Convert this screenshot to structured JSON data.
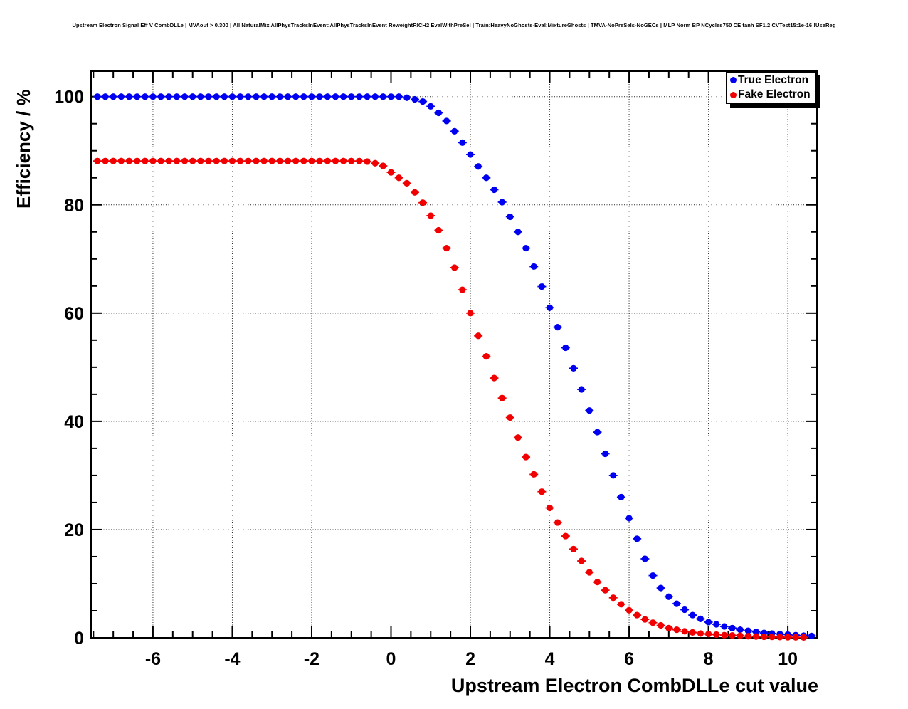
{
  "page": {
    "background": "#ffffff"
  },
  "chart_data": {
    "type": "scatter",
    "title": "Upstream Electron Signal Eff V CombDLLe | MVAout > 0.300 | All NaturalMix AllPhysTracksInEvent:AllPhysTracksInEvent ReweightRICH2 EvalWithPreSel | Train:HeavyNoGhosts-Eval:MixtureGhosts | TMVA-NoPreSels-NoGECs | MLP Norm BP NCycles750 CE tanh SF1.2 CVTest15:1e-16 !UseReg",
    "xlabel": "Upstream Electron CombDLLe cut value",
    "ylabel": "Efficiency / %",
    "xlim": [
      -7.57,
      10.72
    ],
    "ylim": [
      0,
      104.7
    ],
    "x_major_ticks": [
      -6,
      -4,
      -2,
      0,
      2,
      4,
      6,
      8,
      10
    ],
    "x_minor_step": 0.5,
    "y_major_ticks": [
      0,
      20,
      40,
      60,
      80,
      100
    ],
    "y_minor_step": 5,
    "grid": "dotted-at-major-ticks",
    "marker": "filled-circle-with-x-error-bars",
    "legend": {
      "position": "top-right",
      "entries": [
        {
          "label": "True Electron",
          "color": "#0000f0"
        },
        {
          "label": "Fake Electron",
          "color": "#f00000"
        }
      ]
    },
    "x": [
      -7.4,
      -7.2,
      -7.0,
      -6.8,
      -6.6,
      -6.4,
      -6.2,
      -6.0,
      -5.8,
      -5.6,
      -5.4,
      -5.2,
      -5.0,
      -4.8,
      -4.6,
      -4.4,
      -4.2,
      -4.0,
      -3.8,
      -3.6,
      -3.4,
      -3.2,
      -3.0,
      -2.8,
      -2.6,
      -2.4,
      -2.2,
      -2.0,
      -1.8,
      -1.6,
      -1.4,
      -1.2,
      -1.0,
      -0.8,
      -0.6,
      -0.4,
      -0.2,
      0.0,
      0.2,
      0.4,
      0.6,
      0.8,
      1.0,
      1.2,
      1.4,
      1.6,
      1.8,
      2.0,
      2.2,
      2.4,
      2.6,
      2.8,
      3.0,
      3.2,
      3.4,
      3.6,
      3.8,
      4.0,
      4.2,
      4.4,
      4.6,
      4.8,
      5.0,
      5.2,
      5.4,
      5.6,
      5.8,
      6.0,
      6.2,
      6.4,
      6.6,
      6.8,
      7.0,
      7.2,
      7.4,
      7.6,
      7.8,
      8.0,
      8.2,
      8.4,
      8.6,
      8.8,
      9.0,
      9.2,
      9.4,
      9.6,
      9.8,
      10.0,
      10.2,
      10.4,
      10.6
    ],
    "series": [
      {
        "name": "True Electron",
        "color": "#0000f0",
        "values": [
          100,
          100,
          100,
          100,
          100,
          100,
          100,
          100,
          100,
          100,
          100,
          100,
          100,
          100,
          100,
          100,
          100,
          100,
          100,
          100,
          100,
          100,
          100,
          100,
          100,
          100,
          100,
          100,
          100,
          100,
          100,
          100,
          100,
          100,
          100,
          100,
          100,
          100,
          100,
          99.8,
          99.5,
          99.1,
          98.2,
          97.0,
          95.5,
          93.6,
          91.5,
          89.3,
          87.1,
          85.0,
          82.8,
          80.5,
          77.8,
          75.0,
          72.0,
          68.6,
          64.9,
          61.0,
          57.4,
          53.6,
          49.8,
          45.9,
          42.0,
          38.0,
          34.0,
          30.0,
          26.0,
          22.1,
          18.3,
          14.6,
          11.5,
          9.2,
          7.6,
          6.3,
          5.2,
          4.2,
          3.5,
          2.9,
          2.5,
          2.1,
          1.8,
          1.5,
          1.3,
          1.1,
          0.9,
          0.8,
          0.7,
          0.6,
          0.5,
          0.4,
          0.35
        ]
      },
      {
        "name": "Fake Electron",
        "color": "#f00000",
        "values": [
          88.1,
          88.1,
          88.1,
          88.1,
          88.1,
          88.1,
          88.1,
          88.1,
          88.1,
          88.1,
          88.1,
          88.1,
          88.1,
          88.1,
          88.1,
          88.1,
          88.1,
          88.1,
          88.1,
          88.1,
          88.1,
          88.1,
          88.1,
          88.1,
          88.1,
          88.1,
          88.1,
          88.1,
          88.1,
          88.1,
          88.1,
          88.1,
          88.1,
          88.1,
          88.0,
          87.7,
          87.2,
          86.0,
          85.0,
          84.0,
          82.3,
          80.4,
          78.0,
          75.3,
          72.0,
          68.4,
          64.3,
          60.0,
          55.8,
          52.0,
          48.0,
          44.3,
          40.7,
          37.0,
          33.4,
          30.2,
          27.0,
          24.0,
          21.3,
          18.8,
          16.4,
          14.2,
          12.1,
          10.3,
          8.8,
          7.4,
          6.2,
          5.1,
          4.2,
          3.4,
          2.8,
          2.3,
          1.8,
          1.5,
          1.2,
          1.0,
          0.8,
          0.7,
          0.6,
          0.5,
          0.45,
          0.4,
          0.3,
          0.25,
          0.2,
          0.18,
          0.15,
          0.12,
          0.1,
          0.08,
          null
        ]
      }
    ]
  }
}
